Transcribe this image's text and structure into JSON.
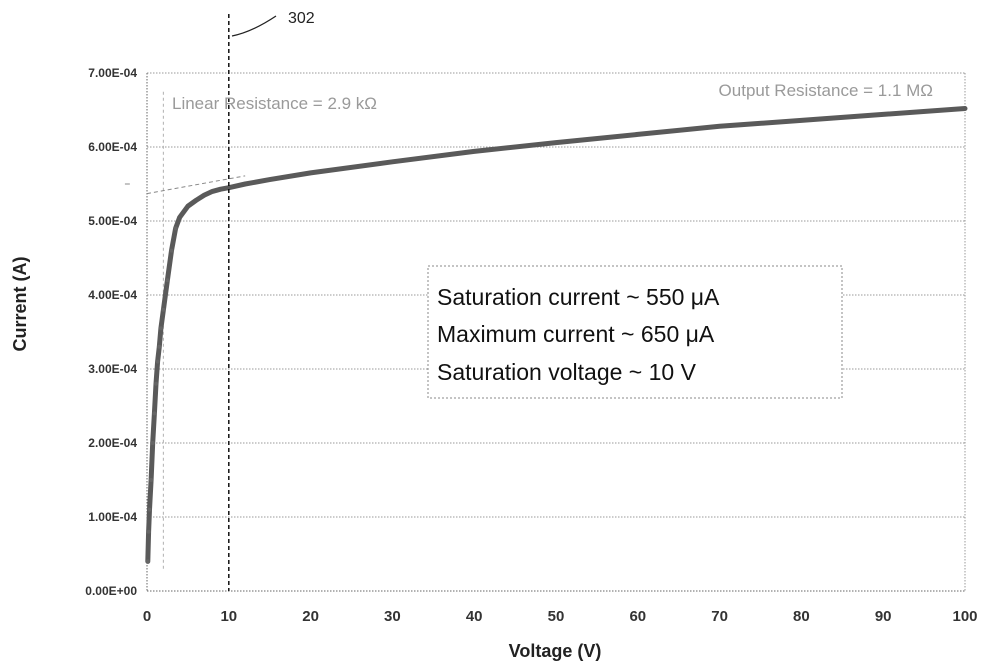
{
  "chart_data": {
    "type": "line",
    "title": "",
    "xlabel": "Voltage (V)",
    "ylabel": "Current (A)",
    "xlim": [
      0,
      100
    ],
    "ylim": [
      0,
      0.0007
    ],
    "x_ticks": [
      "0",
      "10",
      "20",
      "30",
      "40",
      "50",
      "60",
      "70",
      "80",
      "90",
      "100"
    ],
    "y_ticks": [
      "0.00E+00",
      "1.00E-04",
      "2.00E-04",
      "3.00E-04",
      "4.00E-04",
      "5.00E-04",
      "6.00E-04",
      "7.00E-04"
    ],
    "grid": true,
    "series": [
      {
        "x": [
          0.1,
          0.2,
          0.3,
          0.5,
          0.7,
          0.9,
          1.1,
          1.3,
          1.5,
          1.7,
          2,
          2.5,
          3,
          3.5,
          4,
          5,
          6,
          7,
          8,
          9,
          10,
          12,
          15,
          20,
          30,
          40,
          50,
          60,
          70,
          80,
          90,
          100
        ],
        "y": [
          4e-05,
          8e-05,
          0.00011,
          0.00015,
          0.0002,
          0.00024,
          0.00028,
          0.00031,
          0.00033,
          0.000355,
          0.00038,
          0.00042,
          0.00046,
          0.00049,
          0.000505,
          0.00052,
          0.000528,
          0.000535,
          0.00054,
          0.000543,
          0.000545,
          0.00055,
          0.000556,
          0.000565,
          0.00058,
          0.000594,
          0.000606,
          0.000617,
          0.000628,
          0.000636,
          0.000644,
          0.000652
        ]
      }
    ],
    "reference_line": {
      "x": 10,
      "label": "302"
    },
    "annotations": {
      "linear_resistance": "Linear Resistance = 2.9 kΩ",
      "output_resistance": "Output Resistance = 1.1 MΩ",
      "summary_lines": [
        "Saturation current ~ 550 μA",
        "Maximum current ~ 650 μA",
        "Saturation voltage ~ 10 V"
      ]
    }
  },
  "colors": {
    "curve": "#5a5a5a",
    "grid": "#9a9a9a",
    "reference_line": "#111111"
  }
}
